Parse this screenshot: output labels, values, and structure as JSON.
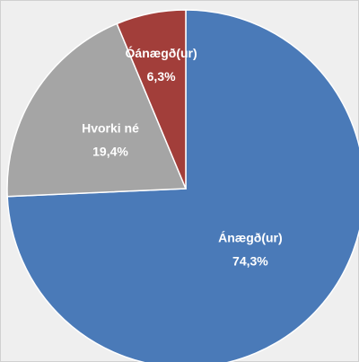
{
  "chart_data": {
    "type": "pie",
    "categories": [
      "Ánægð(ur)",
      "Hvorki né",
      "Óánægð(ur)"
    ],
    "values": [
      74.3,
      19.4,
      6.3
    ],
    "value_labels": [
      "74,3%",
      "19,4%",
      "6,3%"
    ],
    "colors": [
      "#4a7ab8",
      "#a5a5a5",
      "#a23e3a"
    ],
    "start_angle": 90,
    "direction": "clockwise"
  }
}
